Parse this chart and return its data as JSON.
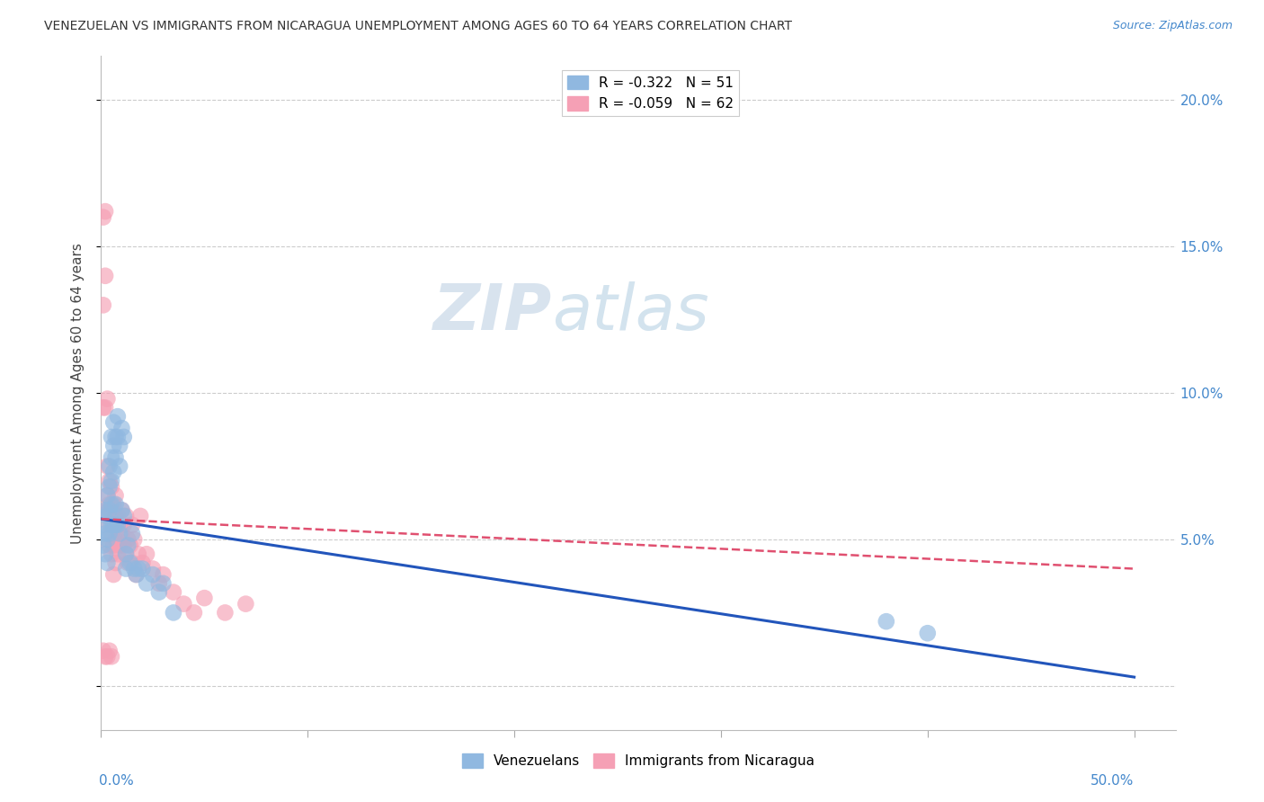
{
  "title": "VENEZUELAN VS IMMIGRANTS FROM NICARAGUA UNEMPLOYMENT AMONG AGES 60 TO 64 YEARS CORRELATION CHART",
  "source": "Source: ZipAtlas.com",
  "ylabel": "Unemployment Among Ages 60 to 64 years",
  "ytick_values": [
    0.0,
    0.05,
    0.1,
    0.15,
    0.2
  ],
  "ytick_labels": [
    "",
    "5.0%",
    "10.0%",
    "15.0%",
    "20.0%"
  ],
  "xtick_values": [
    0.0,
    0.1,
    0.2,
    0.3,
    0.4,
    0.5
  ],
  "xlim": [
    0.0,
    0.52
  ],
  "ylim": [
    -0.015,
    0.215
  ],
  "watermark_zip": "ZIP",
  "watermark_atlas": "atlas",
  "blue_color": "#90b8e0",
  "pink_color": "#f5a0b5",
  "trend_blue_color": "#2255bb",
  "trend_pink_color": "#e05070",
  "venezuelan_x": [
    0.001,
    0.001,
    0.002,
    0.002,
    0.002,
    0.003,
    0.003,
    0.003,
    0.003,
    0.004,
    0.004,
    0.004,
    0.004,
    0.005,
    0.005,
    0.005,
    0.005,
    0.005,
    0.006,
    0.006,
    0.006,
    0.006,
    0.007,
    0.007,
    0.007,
    0.007,
    0.008,
    0.008,
    0.008,
    0.009,
    0.009,
    0.009,
    0.01,
    0.01,
    0.011,
    0.011,
    0.012,
    0.012,
    0.013,
    0.014,
    0.015,
    0.016,
    0.017,
    0.018,
    0.02,
    0.022,
    0.025,
    0.028,
    0.03,
    0.035,
    0.38,
    0.4
  ],
  "venezuelan_y": [
    0.055,
    0.048,
    0.06,
    0.045,
    0.052,
    0.065,
    0.058,
    0.05,
    0.042,
    0.075,
    0.068,
    0.06,
    0.052,
    0.085,
    0.078,
    0.07,
    0.062,
    0.055,
    0.09,
    0.082,
    0.073,
    0.055,
    0.085,
    0.078,
    0.062,
    0.055,
    0.092,
    0.085,
    0.055,
    0.082,
    0.075,
    0.052,
    0.088,
    0.06,
    0.085,
    0.058,
    0.045,
    0.04,
    0.048,
    0.042,
    0.052,
    0.04,
    0.038,
    0.04,
    0.04,
    0.035,
    0.038,
    0.032,
    0.035,
    0.025,
    0.022,
    0.018
  ],
  "nicaragua_x": [
    0.001,
    0.001,
    0.001,
    0.002,
    0.002,
    0.002,
    0.003,
    0.003,
    0.003,
    0.003,
    0.004,
    0.004,
    0.004,
    0.004,
    0.005,
    0.005,
    0.005,
    0.005,
    0.006,
    0.006,
    0.006,
    0.007,
    0.007,
    0.007,
    0.007,
    0.008,
    0.008,
    0.008,
    0.009,
    0.009,
    0.01,
    0.01,
    0.011,
    0.011,
    0.012,
    0.012,
    0.013,
    0.013,
    0.014,
    0.015,
    0.015,
    0.016,
    0.017,
    0.018,
    0.019,
    0.02,
    0.022,
    0.025,
    0.028,
    0.03,
    0.035,
    0.04,
    0.045,
    0.05,
    0.06,
    0.07,
    0.001,
    0.002,
    0.003,
    0.004,
    0.005,
    0.006
  ],
  "nicaragua_y": [
    0.16,
    0.13,
    0.095,
    0.162,
    0.14,
    0.095,
    0.098,
    0.075,
    0.065,
    0.06,
    0.07,
    0.062,
    0.055,
    0.048,
    0.068,
    0.06,
    0.052,
    0.045,
    0.062,
    0.055,
    0.048,
    0.065,
    0.058,
    0.05,
    0.042,
    0.058,
    0.05,
    0.045,
    0.055,
    0.048,
    0.06,
    0.052,
    0.055,
    0.048,
    0.058,
    0.045,
    0.05,
    0.042,
    0.048,
    0.055,
    0.042,
    0.05,
    0.038,
    0.045,
    0.058,
    0.042,
    0.045,
    0.04,
    0.035,
    0.038,
    0.032,
    0.028,
    0.025,
    0.03,
    0.025,
    0.028,
    0.012,
    0.01,
    0.01,
    0.012,
    0.01,
    0.038
  ],
  "ven_trend": [
    0.057,
    0.003
  ],
  "nic_trend": [
    0.057,
    0.04
  ],
  "ven_trend_x": [
    0.0,
    0.5
  ],
  "nic_trend_x": [
    0.0,
    0.5
  ]
}
